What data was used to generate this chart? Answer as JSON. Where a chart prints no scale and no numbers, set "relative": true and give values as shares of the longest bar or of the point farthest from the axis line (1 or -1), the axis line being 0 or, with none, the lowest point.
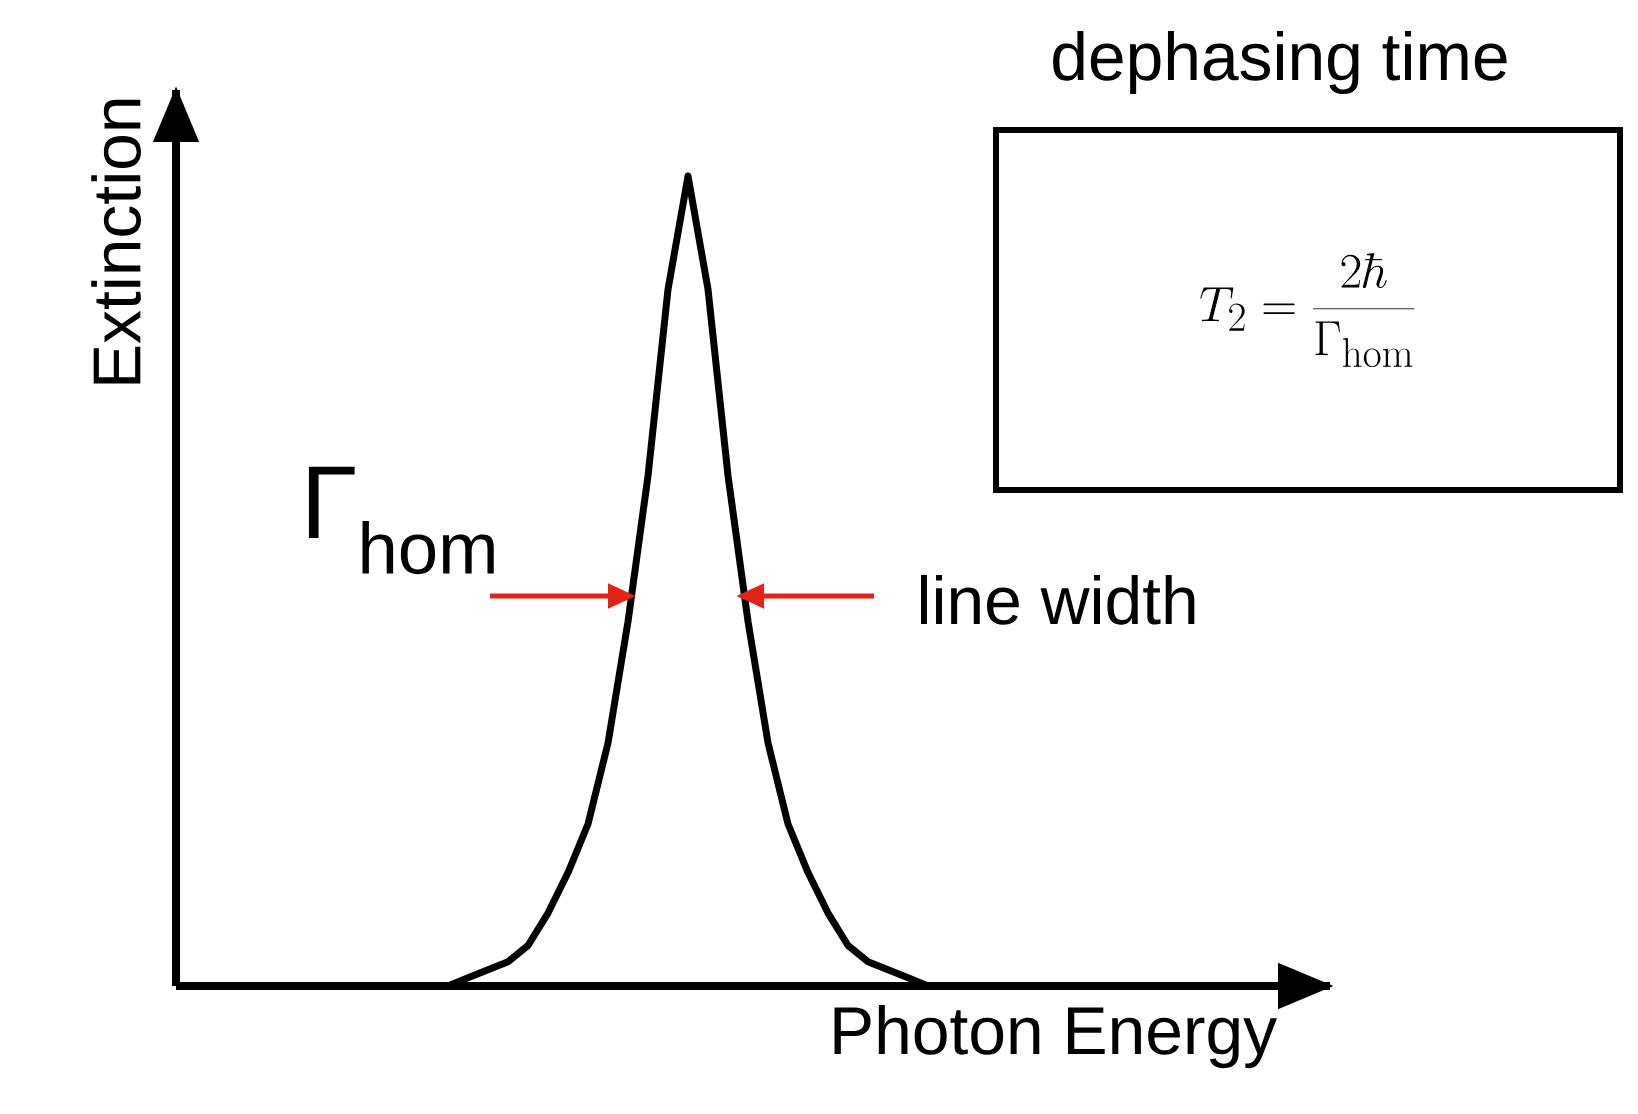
{
  "chart_data": {
    "type": "line",
    "relative": true,
    "color": "#000000",
    "categories": [
      null,
      null,
      null,
      null,
      null,
      null,
      null,
      null,
      null,
      null,
      null,
      null,
      null,
      null,
      null,
      null,
      null,
      null,
      null,
      null,
      null,
      null,
      null,
      null,
      null
    ],
    "values": [
      0,
      0.01,
      0.02,
      0.03,
      0.05,
      0.09,
      0.14,
      0.2,
      0.3,
      0.45,
      0.63,
      0.86,
      1,
      0.86,
      0.63,
      0.45,
      0.3,
      0.2,
      0.14,
      0.09,
      0.05,
      0.03,
      0.02,
      0.01,
      0
    ],
    "xlabel": "Photon Energy",
    "ylabel": "Extinction",
    "annotations": [
      "Γ$_{hom}$",
      "line width",
      "dephasing time",
      "T_2 = \\frac{2\\hbar}{\\Gamma_\\mathrm{hom}}"
    ]
  }
}
